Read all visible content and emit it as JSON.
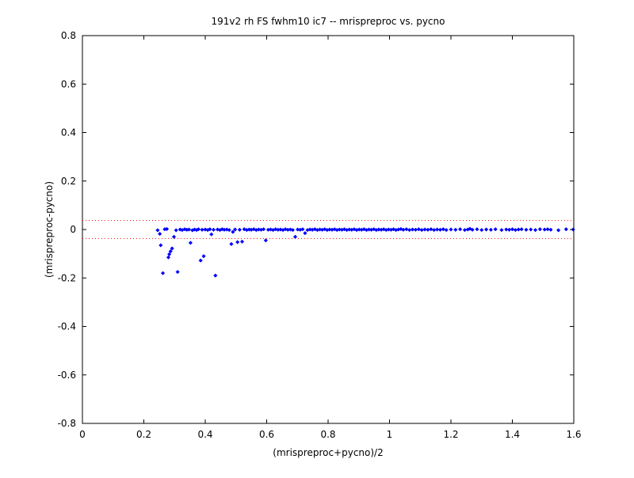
{
  "chart_data": {
    "type": "scatter",
    "title": "191v2 rh FS fwhm10 ic7 -- mrispreproc vs. pycno",
    "xlabel": "(mrispreproc+pycno)/2",
    "ylabel": "(mrispreproc-pycno)",
    "xlim": [
      0,
      1.6
    ],
    "ylim": [
      -0.8,
      0.8
    ],
    "xticks": [
      "0",
      "0.2",
      "0.4",
      "0.6",
      "0.8",
      "1",
      "1.2",
      "1.4",
      "1.6"
    ],
    "yticks": [
      "0.8",
      "0.6",
      "0.4",
      "0.2",
      "0",
      "-0.2",
      "-0.4",
      "-0.6",
      "-0.8"
    ],
    "grid": false,
    "marker_color": "#0000ff",
    "reference_line_color": "#ff0000",
    "reference_lines": [
      0.037,
      -0.037
    ],
    "series": [
      {
        "points": [
          [
            0.245,
            -0.003
          ],
          [
            0.252,
            -0.018
          ],
          [
            0.255,
            -0.065
          ],
          [
            0.262,
            -0.18
          ],
          [
            0.268,
            0.001
          ],
          [
            0.275,
            0.002
          ],
          [
            0.28,
            -0.115
          ],
          [
            0.283,
            -0.102
          ],
          [
            0.287,
            -0.09
          ],
          [
            0.292,
            -0.078
          ],
          [
            0.298,
            -0.03
          ],
          [
            0.305,
            -0.003
          ],
          [
            0.31,
            -0.175
          ],
          [
            0.318,
            0.0
          ],
          [
            0.325,
            -0.002
          ],
          [
            0.333,
            0.001
          ],
          [
            0.34,
            -0.001
          ],
          [
            0.347,
            0.0
          ],
          [
            0.352,
            -0.055
          ],
          [
            0.358,
            -0.003
          ],
          [
            0.365,
            0.0
          ],
          [
            0.372,
            -0.002
          ],
          [
            0.378,
            0.001
          ],
          [
            0.385,
            -0.128
          ],
          [
            0.39,
            -0.001
          ],
          [
            0.395,
            -0.11
          ],
          [
            0.4,
            0.0
          ],
          [
            0.408,
            -0.002
          ],
          [
            0.415,
            0.001
          ],
          [
            0.42,
            -0.02
          ],
          [
            0.427,
            -0.001
          ],
          [
            0.433,
            -0.19
          ],
          [
            0.44,
            0.0
          ],
          [
            0.448,
            -0.002
          ],
          [
            0.455,
            0.001
          ],
          [
            0.462,
            -0.001
          ],
          [
            0.47,
            0.0
          ],
          [
            0.478,
            -0.002
          ],
          [
            0.485,
            -0.06
          ],
          [
            0.49,
            -0.01
          ],
          [
            0.497,
            0.0
          ],
          [
            0.505,
            -0.052
          ],
          [
            0.512,
            -0.001
          ],
          [
            0.52,
            -0.05
          ],
          [
            0.527,
            0.001
          ],
          [
            0.535,
            -0.002
          ],
          [
            0.543,
            0.0
          ],
          [
            0.55,
            -0.001
          ],
          [
            0.558,
            0.001
          ],
          [
            0.566,
            -0.002
          ],
          [
            0.574,
            0.0
          ],
          [
            0.582,
            -0.001
          ],
          [
            0.59,
            0.001
          ],
          [
            0.597,
            -0.045
          ],
          [
            0.605,
            -0.001
          ],
          [
            0.613,
            0.0
          ],
          [
            0.621,
            -0.002
          ],
          [
            0.629,
            0.001
          ],
          [
            0.637,
            -0.001
          ],
          [
            0.645,
            0.0
          ],
          [
            0.653,
            -0.002
          ],
          [
            0.661,
            0.001
          ],
          [
            0.669,
            -0.001
          ],
          [
            0.677,
            0.0
          ],
          [
            0.685,
            -0.002
          ],
          [
            0.693,
            -0.03
          ],
          [
            0.701,
            0.0
          ],
          [
            0.709,
            -0.001
          ],
          [
            0.717,
            0.001
          ],
          [
            0.725,
            -0.015
          ],
          [
            0.733,
            -0.002
          ],
          [
            0.741,
            0.0
          ],
          [
            0.749,
            -0.001
          ],
          [
            0.757,
            0.001
          ],
          [
            0.765,
            -0.002
          ],
          [
            0.773,
            0.0
          ],
          [
            0.781,
            -0.001
          ],
          [
            0.789,
            0.001
          ],
          [
            0.797,
            -0.002
          ],
          [
            0.805,
            0.0
          ],
          [
            0.813,
            -0.001
          ],
          [
            0.821,
            0.001
          ],
          [
            0.829,
            -0.002
          ],
          [
            0.837,
            0.0
          ],
          [
            0.845,
            -0.001
          ],
          [
            0.853,
            0.001
          ],
          [
            0.861,
            -0.002
          ],
          [
            0.869,
            0.0
          ],
          [
            0.877,
            -0.001
          ],
          [
            0.885,
            0.001
          ],
          [
            0.893,
            -0.002
          ],
          [
            0.901,
            0.0
          ],
          [
            0.909,
            -0.001
          ],
          [
            0.917,
            0.001
          ],
          [
            0.925,
            -0.002
          ],
          [
            0.933,
            0.0
          ],
          [
            0.941,
            -0.001
          ],
          [
            0.949,
            0.001
          ],
          [
            0.957,
            -0.002
          ],
          [
            0.965,
            0.0
          ],
          [
            0.973,
            -0.001
          ],
          [
            0.981,
            0.001
          ],
          [
            0.989,
            -0.002
          ],
          [
            0.997,
            0.0
          ],
          [
            1.005,
            -0.001
          ],
          [
            1.013,
            0.001
          ],
          [
            1.021,
            -0.002
          ],
          [
            1.029,
            0.0
          ],
          [
            1.037,
            0.002
          ],
          [
            1.045,
            -0.001
          ],
          [
            1.055,
            0.001
          ],
          [
            1.065,
            -0.002
          ],
          [
            1.075,
            0.0
          ],
          [
            1.085,
            -0.001
          ],
          [
            1.095,
            0.001
          ],
          [
            1.105,
            -0.002
          ],
          [
            1.115,
            0.0
          ],
          [
            1.125,
            -0.001
          ],
          [
            1.135,
            0.001
          ],
          [
            1.145,
            -0.002
          ],
          [
            1.155,
            0.0
          ],
          [
            1.165,
            -0.001
          ],
          [
            1.175,
            0.001
          ],
          [
            1.185,
            -0.002
          ],
          [
            1.2,
            0.0
          ],
          [
            1.215,
            -0.001
          ],
          [
            1.23,
            0.001
          ],
          [
            1.245,
            -0.002
          ],
          [
            1.255,
            0.0
          ],
          [
            1.262,
            0.003
          ],
          [
            1.27,
            -0.001
          ],
          [
            1.285,
            0.001
          ],
          [
            1.3,
            -0.002
          ],
          [
            1.315,
            0.0
          ],
          [
            1.33,
            -0.001
          ],
          [
            1.345,
            0.001
          ],
          [
            1.365,
            -0.002
          ],
          [
            1.38,
            0.0
          ],
          [
            1.39,
            -0.001
          ],
          [
            1.4,
            0.001
          ],
          [
            1.41,
            -0.002
          ],
          [
            1.42,
            0.0
          ],
          [
            1.43,
            0.001
          ],
          [
            1.445,
            -0.001
          ],
          [
            1.46,
            0.0
          ],
          [
            1.475,
            -0.002
          ],
          [
            1.49,
            0.001
          ],
          [
            1.505,
            0.0
          ],
          [
            1.515,
            0.001
          ],
          [
            1.525,
            -0.001
          ],
          [
            1.55,
            -0.003
          ],
          [
            1.575,
            0.001
          ],
          [
            1.598,
            0.0
          ]
        ]
      }
    ]
  }
}
